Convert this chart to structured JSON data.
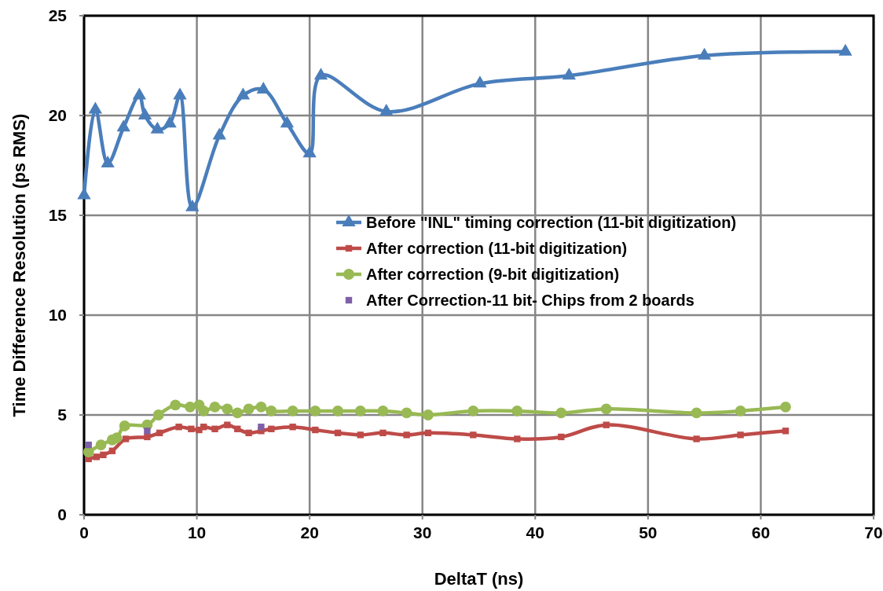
{
  "chart_data": {
    "type": "line",
    "xlabel": "DeltaT (ns)",
    "ylabel": "Time Difference  Resolution (ps RMS)",
    "xlim": [
      0,
      70
    ],
    "ylim": [
      0,
      25
    ],
    "xticks": [
      0,
      10,
      20,
      30,
      40,
      50,
      60,
      70
    ],
    "yticks": [
      0,
      5,
      10,
      15,
      20,
      25
    ],
    "grid": true,
    "legend": "right",
    "line_style": "solid",
    "series": [
      {
        "name": "Before \"INL\" timing correction (11-bit digitization)",
        "color": "#4a7ebb",
        "marker": "triangle",
        "x": [
          0.0,
          1.0,
          2.1,
          3.5,
          4.9,
          5.4,
          6.5,
          7.6,
          8.5,
          9.6,
          12.0,
          14.1,
          15.9,
          18.0,
          20.0,
          21.0,
          26.8,
          35.1,
          43.0,
          55.0,
          67.5
        ],
        "values": [
          16.0,
          20.3,
          17.6,
          19.4,
          21.0,
          20.0,
          19.3,
          19.6,
          21.0,
          15.4,
          19.0,
          21.0,
          21.3,
          19.6,
          18.1,
          22.0,
          20.2,
          21.6,
          22.0,
          23.0,
          23.2
        ]
      },
      {
        "name": "After correction (11-bit digitization)",
        "color": "#be4b48",
        "marker": "square",
        "x": [
          0.4,
          1.1,
          1.7,
          2.5,
          3.7,
          5.6,
          6.7,
          8.4,
          9.5,
          10.2,
          10.6,
          11.6,
          12.7,
          13.6,
          14.6,
          15.7,
          16.6,
          18.5,
          20.5,
          22.5,
          24.5,
          26.5,
          28.6,
          30.5,
          34.5,
          38.4,
          42.3,
          46.3,
          54.3,
          58.2,
          62.2
        ],
        "values": [
          2.8,
          2.9,
          3.0,
          3.2,
          3.8,
          3.9,
          4.1,
          4.4,
          4.3,
          4.25,
          4.4,
          4.3,
          4.5,
          4.3,
          4.1,
          4.2,
          4.3,
          4.4,
          4.25,
          4.1,
          4.0,
          4.1,
          4.0,
          4.1,
          4.0,
          3.8,
          3.9,
          4.5,
          3.8,
          4.0,
          4.2
        ]
      },
      {
        "name": "After correction (9-bit digitization)",
        "color": "#98b954",
        "marker": "circle",
        "x": [
          0.4,
          1.5,
          2.5,
          2.9,
          3.6,
          5.6,
          6.6,
          8.1,
          9.4,
          10.2,
          10.6,
          11.6,
          12.7,
          13.6,
          14.6,
          15.7,
          16.6,
          18.5,
          20.5,
          22.5,
          24.5,
          26.5,
          28.6,
          30.5,
          34.5,
          38.4,
          42.3,
          46.3,
          54.3,
          58.2,
          62.2
        ],
        "values": [
          3.15,
          3.5,
          3.75,
          3.85,
          4.45,
          4.5,
          5.0,
          5.5,
          5.4,
          5.5,
          5.2,
          5.4,
          5.3,
          5.1,
          5.3,
          5.4,
          5.2,
          5.2,
          5.2,
          5.2,
          5.2,
          5.2,
          5.1,
          5.0,
          5.2,
          5.2,
          5.1,
          5.3,
          5.1,
          5.2,
          5.4
        ]
      },
      {
        "name": "After Correction-11 bit- Chips from 2 boards",
        "color": "#7f60a8",
        "type": "scatter",
        "marker": "square",
        "x": [
          0.4,
          5.6,
          15.7
        ],
        "values": [
          3.5,
          4.2,
          4.4
        ]
      }
    ]
  }
}
